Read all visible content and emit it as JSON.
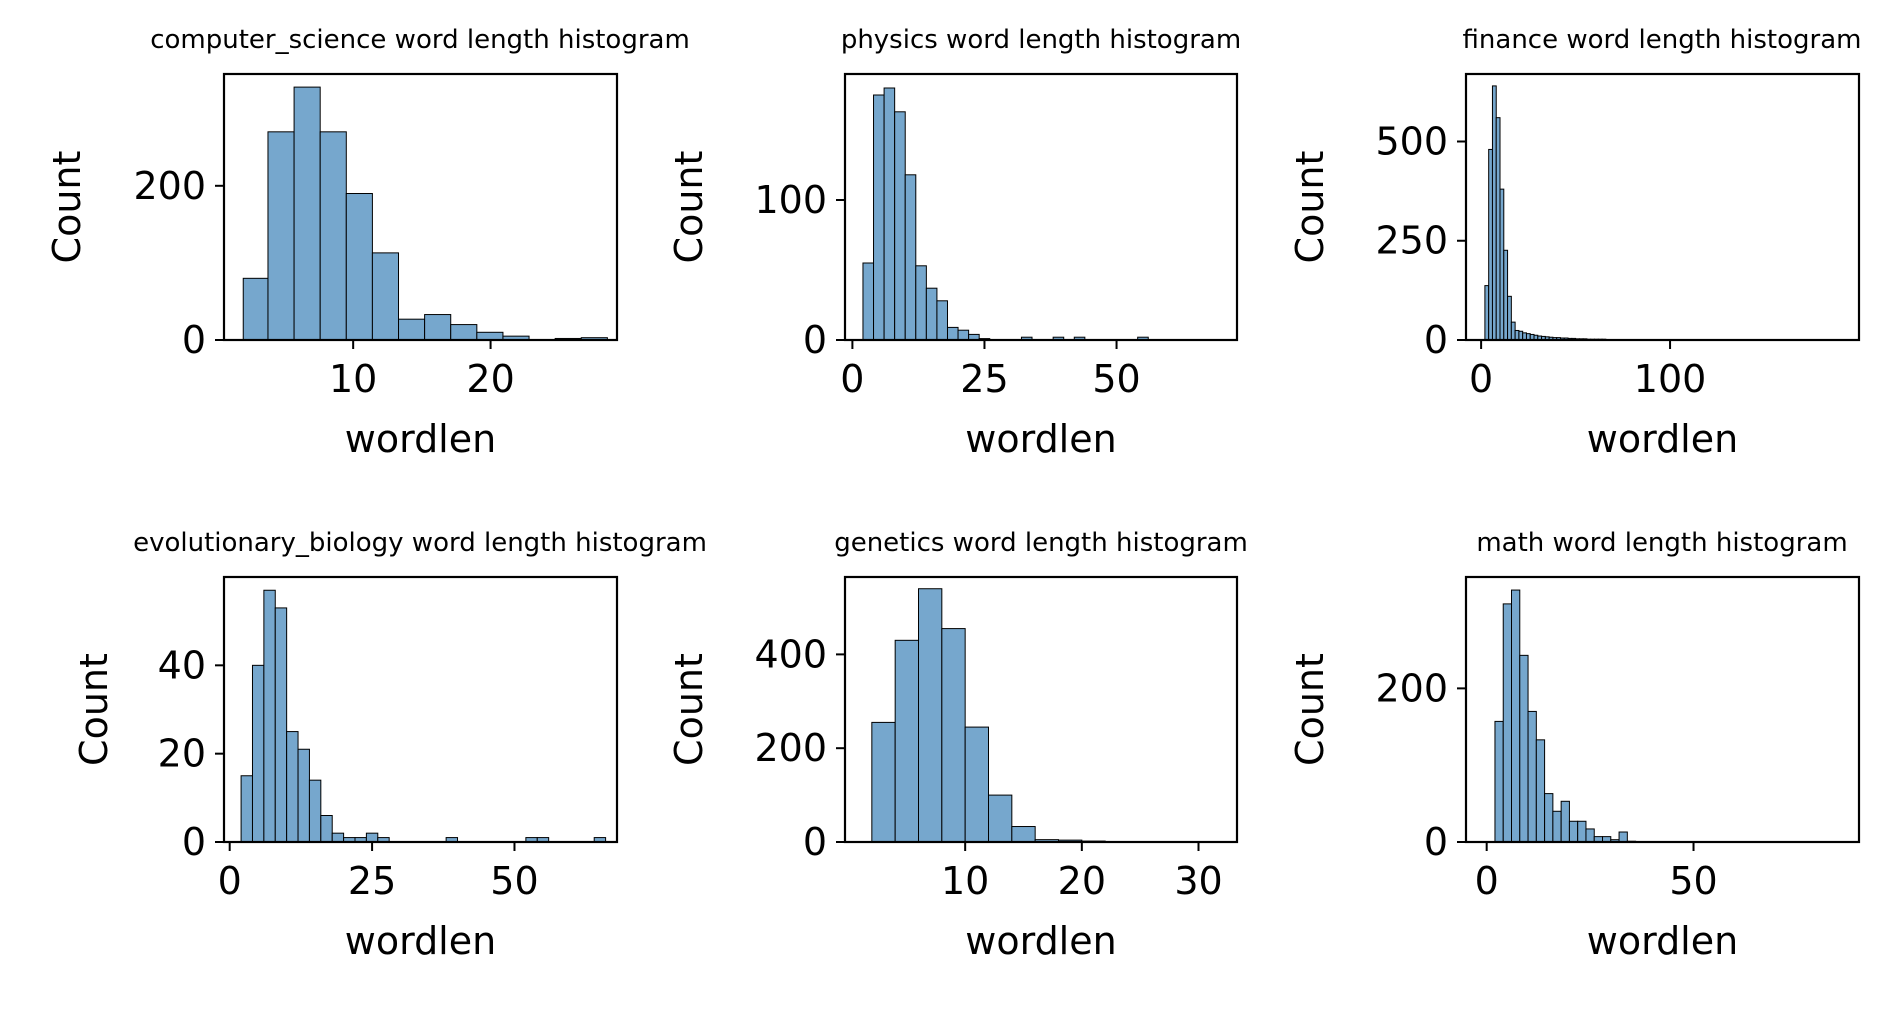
{
  "style": {
    "bar_fill": "#76a7cd",
    "bar_edge": "#000000",
    "axes_color": "#000000",
    "background": "#ffffff"
  },
  "chart_data": [
    {
      "type": "bar",
      "title": "computer_science word length histogram",
      "xlabel": "wordlen",
      "ylabel": "Count",
      "xlim": [
        0.6,
        29.2
      ],
      "ylim": [
        0,
        345
      ],
      "xticks": [
        10,
        20
      ],
      "yticks": [
        0,
        200
      ],
      "grid": false,
      "bins": [
        [
          2.0,
          3.8,
          80
        ],
        [
          3.8,
          5.7,
          270
        ],
        [
          5.7,
          7.6,
          328
        ],
        [
          7.6,
          9.5,
          270
        ],
        [
          9.5,
          11.4,
          190
        ],
        [
          11.4,
          13.3,
          113
        ],
        [
          13.3,
          15.2,
          27
        ],
        [
          15.2,
          17.1,
          33
        ],
        [
          17.1,
          19.0,
          20
        ],
        [
          19.0,
          20.9,
          10
        ],
        [
          20.9,
          22.8,
          5
        ],
        [
          22.8,
          24.7,
          0
        ],
        [
          24.7,
          26.6,
          2
        ],
        [
          26.6,
          28.5,
          3
        ]
      ]
    },
    {
      "type": "bar",
      "title": "physics word length histogram",
      "xlabel": "wordlen",
      "ylabel": "Count",
      "xlim": [
        -1.4,
        72.8
      ],
      "ylim": [
        0,
        190
      ],
      "xticks": [
        0,
        25,
        50
      ],
      "yticks": [
        0,
        100
      ],
      "grid": false,
      "bins": [
        [
          2,
          4,
          55
        ],
        [
          4,
          6,
          175
        ],
        [
          6,
          8,
          180
        ],
        [
          8,
          10,
          163
        ],
        [
          10,
          12,
          118
        ],
        [
          12,
          14,
          53
        ],
        [
          14,
          16,
          37
        ],
        [
          16,
          18,
          28
        ],
        [
          18,
          20,
          9
        ],
        [
          20,
          22,
          7
        ],
        [
          22,
          24,
          4
        ],
        [
          24,
          26,
          1
        ],
        [
          32,
          34,
          2
        ],
        [
          38,
          40,
          2
        ],
        [
          42,
          44,
          2
        ],
        [
          54,
          56,
          2
        ]
      ]
    },
    {
      "type": "bar",
      "title": "finance word length histogram",
      "xlabel": "wordlen",
      "ylabel": "Count",
      "xlim": [
        -8,
        200
      ],
      "ylim": [
        0,
        670
      ],
      "xticks": [
        0,
        100
      ],
      "yticks": [
        0,
        250,
        500
      ],
      "grid": false,
      "bins": [
        [
          2,
          4,
          137
        ],
        [
          4,
          6,
          480
        ],
        [
          6,
          8,
          640
        ],
        [
          8,
          10,
          560
        ],
        [
          10,
          12,
          380
        ],
        [
          12,
          14,
          226
        ],
        [
          14,
          16,
          110
        ],
        [
          16,
          18,
          45
        ],
        [
          18,
          20,
          24
        ],
        [
          20,
          22,
          22
        ],
        [
          22,
          24,
          18
        ],
        [
          24,
          26,
          16
        ],
        [
          26,
          28,
          14
        ],
        [
          28,
          30,
          12
        ],
        [
          30,
          32,
          10
        ],
        [
          32,
          34,
          9
        ],
        [
          34,
          36,
          8
        ],
        [
          36,
          38,
          7
        ],
        [
          38,
          40,
          6
        ],
        [
          40,
          42,
          6
        ],
        [
          42,
          44,
          5
        ],
        [
          44,
          46,
          5
        ],
        [
          46,
          48,
          4
        ],
        [
          48,
          50,
          4
        ],
        [
          50,
          52,
          3
        ],
        [
          52,
          54,
          3
        ],
        [
          54,
          56,
          3
        ],
        [
          56,
          58,
          2
        ],
        [
          58,
          60,
          2
        ],
        [
          60,
          62,
          2
        ],
        [
          62,
          64,
          2
        ],
        [
          64,
          66,
          2
        ],
        [
          66,
          68,
          1
        ],
        [
          68,
          70,
          1
        ],
        [
          70,
          72,
          1
        ],
        [
          74,
          76,
          1
        ],
        [
          78,
          80,
          1
        ],
        [
          84,
          86,
          1
        ],
        [
          90,
          92,
          1
        ],
        [
          98,
          100,
          1
        ],
        [
          106,
          108,
          1
        ],
        [
          114,
          116,
          1
        ]
      ]
    },
    {
      "type": "bar",
      "title": "evolutionary_biology word length histogram",
      "xlabel": "wordlen",
      "ylabel": "Count",
      "xlim": [
        -1,
        68
      ],
      "ylim": [
        0,
        60
      ],
      "xticks": [
        0,
        25,
        50
      ],
      "yticks": [
        0,
        20,
        40
      ],
      "grid": false,
      "bins": [
        [
          2,
          4,
          15
        ],
        [
          4,
          6,
          40
        ],
        [
          6,
          8,
          57
        ],
        [
          8,
          10,
          53
        ],
        [
          10,
          12,
          25
        ],
        [
          12,
          14,
          21
        ],
        [
          14,
          16,
          14
        ],
        [
          16,
          18,
          6
        ],
        [
          18,
          20,
          2
        ],
        [
          20,
          22,
          1
        ],
        [
          22,
          24,
          1
        ],
        [
          24,
          26,
          2
        ],
        [
          26,
          28,
          1
        ],
        [
          38,
          40,
          1
        ],
        [
          52,
          54,
          1
        ],
        [
          54,
          56,
          1
        ],
        [
          64,
          66,
          1
        ]
      ]
    },
    {
      "type": "bar",
      "title": "genetics word length histogram",
      "xlabel": "wordlen",
      "ylabel": "Count",
      "xlim": [
        -0.3,
        33.3
      ],
      "ylim": [
        0,
        565
      ],
      "xticks": [
        10,
        20,
        30
      ],
      "yticks": [
        0,
        200,
        400
      ],
      "grid": false,
      "bins": [
        [
          2,
          4,
          255
        ],
        [
          4,
          6,
          430
        ],
        [
          6,
          8,
          540
        ],
        [
          8,
          10,
          455
        ],
        [
          10,
          12,
          245
        ],
        [
          12,
          14,
          100
        ],
        [
          14,
          16,
          33
        ],
        [
          16,
          18,
          5
        ],
        [
          18,
          20,
          4
        ],
        [
          20,
          22,
          2
        ],
        [
          22,
          24,
          1
        ],
        [
          24,
          26,
          1
        ],
        [
          26,
          28,
          1
        ],
        [
          28,
          30,
          1
        ]
      ]
    },
    {
      "type": "bar",
      "title": "math word length histogram",
      "xlabel": "wordlen",
      "ylabel": "Count",
      "xlim": [
        -5,
        90
      ],
      "ylim": [
        0,
        345
      ],
      "xticks": [
        0,
        50
      ],
      "yticks": [
        0,
        200
      ],
      "grid": false,
      "bins": [
        [
          2,
          4,
          157
        ],
        [
          4,
          6,
          310
        ],
        [
          6,
          8,
          328
        ],
        [
          8,
          10,
          243
        ],
        [
          10,
          12,
          170
        ],
        [
          12,
          14,
          133
        ],
        [
          14,
          16,
          63
        ],
        [
          16,
          18,
          40
        ],
        [
          18,
          20,
          53
        ],
        [
          20,
          22,
          27
        ],
        [
          22,
          24,
          27
        ],
        [
          24,
          26,
          17
        ],
        [
          26,
          28,
          7
        ],
        [
          28,
          30,
          7
        ],
        [
          30,
          32,
          3
        ],
        [
          32,
          34,
          13
        ],
        [
          34,
          36,
          1
        ]
      ]
    }
  ]
}
